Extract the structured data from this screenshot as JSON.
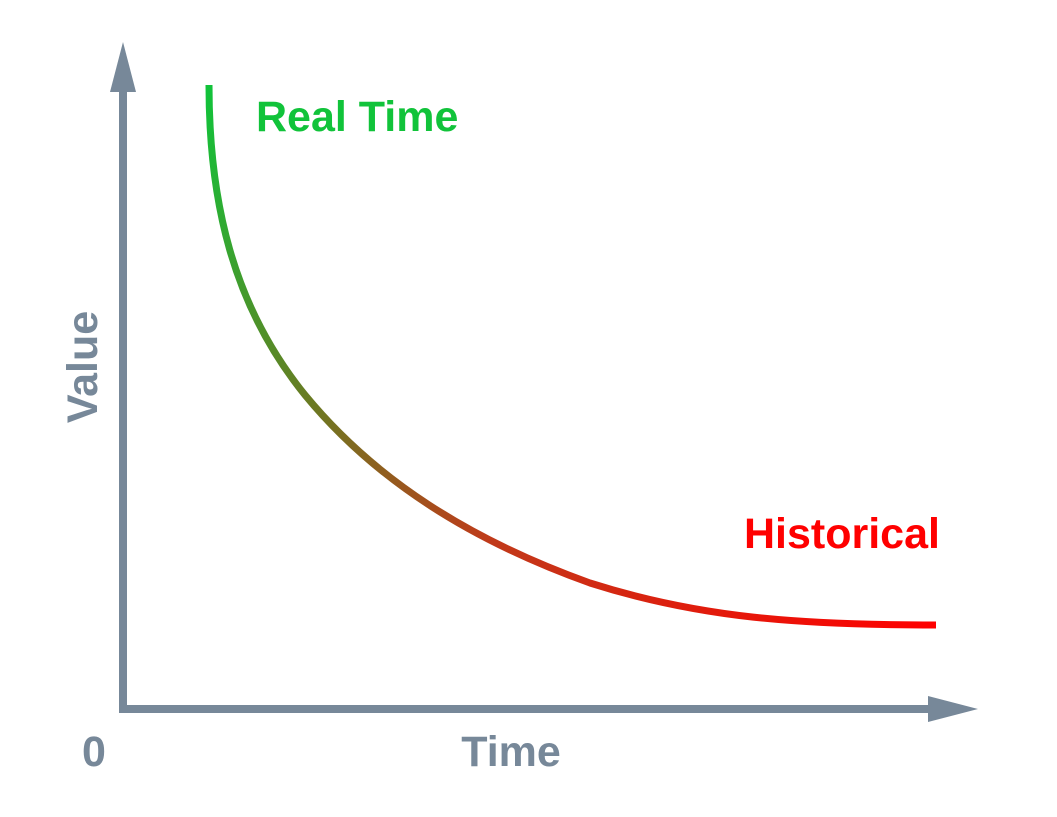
{
  "axes": {
    "x_label": "Time",
    "y_label": "Value",
    "origin_label": "0",
    "color": "#778899"
  },
  "curve": {
    "start_label": "Real Time",
    "end_label": "Historical",
    "start_color": "#11c33a",
    "end_color": "#ff0000"
  }
}
